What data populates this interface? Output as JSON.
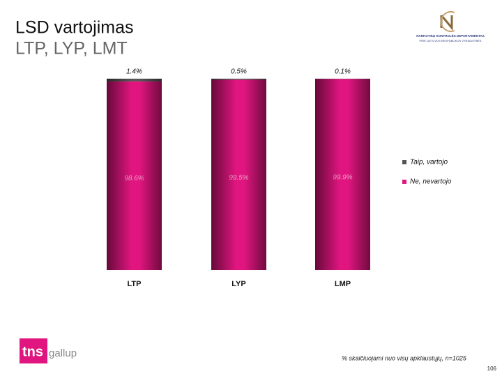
{
  "header": {
    "title": "LSD vartojimas",
    "subtitle": "LTP, LYP, LMT",
    "logo_lines": [
      "NARKOTIKŲ KONTROLĖS DEPARTAMENTAS",
      "PRIE LIETUVOS RESPUBLIKOS VYRIAUSYBĖS"
    ]
  },
  "chart_data": {
    "type": "stacked_bar",
    "categories": [
      "LTP",
      "LYP",
      "LMP"
    ],
    "series": [
      {
        "name": "Taip, vartojo",
        "color": "#555555",
        "values": [
          1.4,
          0.5,
          0.1
        ],
        "value_labels": [
          "1.4%",
          "0.5%",
          "0.1%"
        ]
      },
      {
        "name": "Ne, nevartojo",
        "color": "#e0157f",
        "values": [
          98.6,
          99.5,
          99.9
        ],
        "value_labels": [
          "98.6%",
          "99.5%",
          "99.9%"
        ]
      }
    ],
    "ylim": [
      0,
      100
    ]
  },
  "footer": {
    "note": "% skaičiuojami nuo visų apklaustųjų, n=1025",
    "page": "106",
    "brand": [
      "tns",
      "gallup"
    ]
  }
}
